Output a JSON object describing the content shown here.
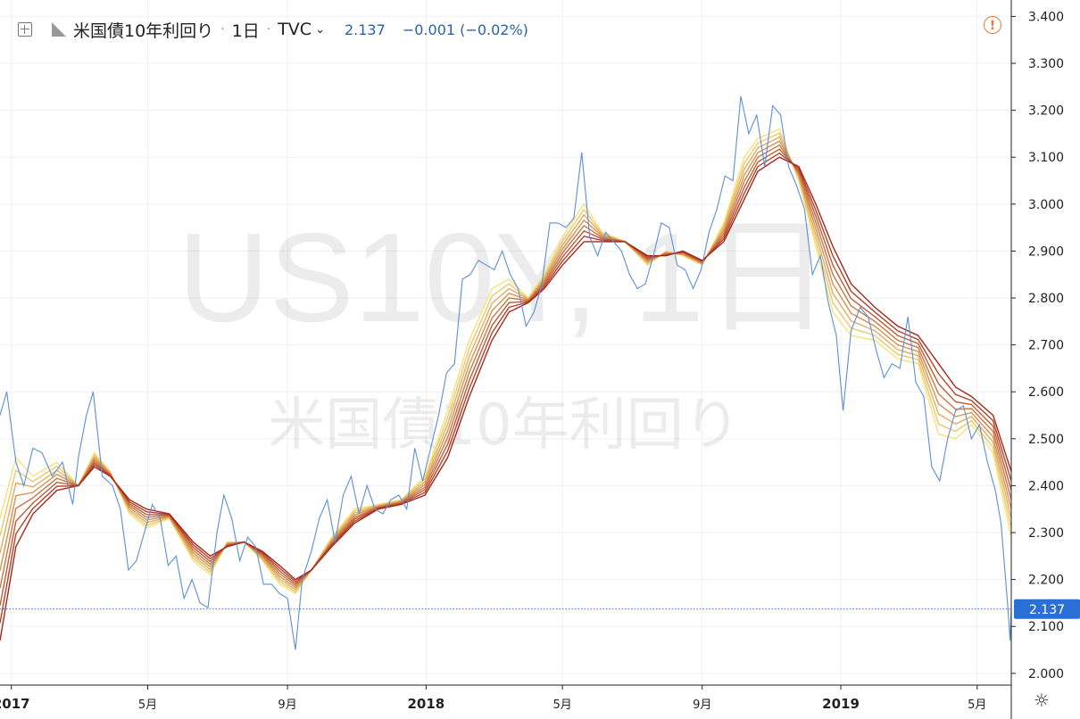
{
  "header": {
    "symbol_title": "米国債10年利回り",
    "separator": "·",
    "interval": "1日",
    "exchange": "TVC",
    "last_value": "2.137",
    "change": "−0.001 (−0.02%)"
  },
  "watermark": {
    "line1": "US10Y, 1日",
    "line2": "米国債10年利回り"
  },
  "icons": {
    "add": "plus-square-icon",
    "flag": "flag-icon",
    "dropdown": "chevron-down-icon",
    "alert": "alert-circle-icon",
    "settings": "gear-icon"
  },
  "colors": {
    "price_line": "#5b8fd9",
    "ribbon_fast": "#f7e27a",
    "ribbon_slow": "#a8271b",
    "price_tag": "#2a6fd6",
    "alert": "#ef7a30"
  },
  "chart_data": {
    "type": "line",
    "x_axis": {
      "ticks": [
        {
          "label": "2017",
          "date": "2017-01-01",
          "major": true
        },
        {
          "label": "5月",
          "date": "2017-05-01",
          "major": false
        },
        {
          "label": "9月",
          "date": "2017-09-01",
          "major": false
        },
        {
          "label": "2018",
          "date": "2018-01-01",
          "major": true
        },
        {
          "label": "5月",
          "date": "2018-05-01",
          "major": false
        },
        {
          "label": "9月",
          "date": "2018-09-01",
          "major": false
        },
        {
          "label": "2019",
          "date": "2019-01-01",
          "major": true
        },
        {
          "label": "5月",
          "date": "2019-05-01",
          "major": false
        }
      ],
      "range": [
        "2016-12-22",
        "2019-05-31"
      ]
    },
    "y_axis": {
      "ticks": [
        "2.000",
        "2.100",
        "2.200",
        "2.300",
        "2.400",
        "2.500",
        "2.600",
        "2.700",
        "2.800",
        "2.900",
        "3.000",
        "3.100",
        "3.200",
        "3.300",
        "3.400"
      ],
      "range": [
        1.975,
        3.435
      ],
      "side": "right"
    },
    "grid": true,
    "current_value": {
      "value": 2.137,
      "label": "2.137"
    },
    "series": [
      {
        "role": "price",
        "color": "#5b8fd9",
        "points": [
          [
            "2016-12-22",
            2.55
          ],
          [
            "2016-12-28",
            2.6
          ],
          [
            "2017-01-05",
            2.45
          ],
          [
            "2017-01-12",
            2.4
          ],
          [
            "2017-01-20",
            2.48
          ],
          [
            "2017-01-28",
            2.47
          ],
          [
            "2017-02-06",
            2.42
          ],
          [
            "2017-02-15",
            2.45
          ],
          [
            "2017-02-24",
            2.36
          ],
          [
            "2017-03-01",
            2.46
          ],
          [
            "2017-03-08",
            2.55
          ],
          [
            "2017-03-14",
            2.6
          ],
          [
            "2017-03-22",
            2.42
          ],
          [
            "2017-03-31",
            2.4
          ],
          [
            "2017-04-07",
            2.35
          ],
          [
            "2017-04-14",
            2.22
          ],
          [
            "2017-04-21",
            2.24
          ],
          [
            "2017-04-28",
            2.3
          ],
          [
            "2017-05-05",
            2.36
          ],
          [
            "2017-05-12",
            2.33
          ],
          [
            "2017-05-19",
            2.23
          ],
          [
            "2017-05-26",
            2.25
          ],
          [
            "2017-06-02",
            2.16
          ],
          [
            "2017-06-09",
            2.2
          ],
          [
            "2017-06-16",
            2.15
          ],
          [
            "2017-06-23",
            2.14
          ],
          [
            "2017-07-01",
            2.3
          ],
          [
            "2017-07-07",
            2.38
          ],
          [
            "2017-07-14",
            2.33
          ],
          [
            "2017-07-21",
            2.24
          ],
          [
            "2017-07-28",
            2.29
          ],
          [
            "2017-08-04",
            2.27
          ],
          [
            "2017-08-11",
            2.19
          ],
          [
            "2017-08-18",
            2.19
          ],
          [
            "2017-08-25",
            2.17
          ],
          [
            "2017-09-01",
            2.16
          ],
          [
            "2017-09-08",
            2.05
          ],
          [
            "2017-09-14",
            2.2
          ],
          [
            "2017-09-22",
            2.26
          ],
          [
            "2017-09-29",
            2.33
          ],
          [
            "2017-10-06",
            2.37
          ],
          [
            "2017-10-13",
            2.28
          ],
          [
            "2017-10-20",
            2.38
          ],
          [
            "2017-10-27",
            2.42
          ],
          [
            "2017-11-03",
            2.34
          ],
          [
            "2017-11-10",
            2.4
          ],
          [
            "2017-11-17",
            2.35
          ],
          [
            "2017-11-24",
            2.34
          ],
          [
            "2017-12-01",
            2.37
          ],
          [
            "2017-12-08",
            2.38
          ],
          [
            "2017-12-15",
            2.35
          ],
          [
            "2017-12-22",
            2.48
          ],
          [
            "2017-12-29",
            2.41
          ],
          [
            "2018-01-05",
            2.48
          ],
          [
            "2018-01-12",
            2.55
          ],
          [
            "2018-01-19",
            2.64
          ],
          [
            "2018-01-26",
            2.66
          ],
          [
            "2018-02-02",
            2.84
          ],
          [
            "2018-02-09",
            2.85
          ],
          [
            "2018-02-16",
            2.88
          ],
          [
            "2018-02-23",
            2.87
          ],
          [
            "2018-03-02",
            2.86
          ],
          [
            "2018-03-09",
            2.9
          ],
          [
            "2018-03-16",
            2.85
          ],
          [
            "2018-03-23",
            2.82
          ],
          [
            "2018-03-30",
            2.74
          ],
          [
            "2018-04-06",
            2.77
          ],
          [
            "2018-04-13",
            2.83
          ],
          [
            "2018-04-20",
            2.96
          ],
          [
            "2018-04-27",
            2.96
          ],
          [
            "2018-05-04",
            2.95
          ],
          [
            "2018-05-11",
            2.97
          ],
          [
            "2018-05-18",
            3.11
          ],
          [
            "2018-05-25",
            2.93
          ],
          [
            "2018-06-01",
            2.89
          ],
          [
            "2018-06-08",
            2.94
          ],
          [
            "2018-06-15",
            2.92
          ],
          [
            "2018-06-22",
            2.9
          ],
          [
            "2018-06-29",
            2.85
          ],
          [
            "2018-07-06",
            2.82
          ],
          [
            "2018-07-13",
            2.83
          ],
          [
            "2018-07-20",
            2.89
          ],
          [
            "2018-07-27",
            2.96
          ],
          [
            "2018-08-03",
            2.95
          ],
          [
            "2018-08-10",
            2.87
          ],
          [
            "2018-08-17",
            2.86
          ],
          [
            "2018-08-24",
            2.82
          ],
          [
            "2018-08-31",
            2.86
          ],
          [
            "2018-09-07",
            2.94
          ],
          [
            "2018-09-14",
            2.99
          ],
          [
            "2018-09-21",
            3.06
          ],
          [
            "2018-09-28",
            3.05
          ],
          [
            "2018-10-05",
            3.23
          ],
          [
            "2018-10-12",
            3.15
          ],
          [
            "2018-10-19",
            3.19
          ],
          [
            "2018-10-26",
            3.08
          ],
          [
            "2018-11-02",
            3.21
          ],
          [
            "2018-11-09",
            3.19
          ],
          [
            "2018-11-16",
            3.08
          ],
          [
            "2018-11-23",
            3.04
          ],
          [
            "2018-11-30",
            2.99
          ],
          [
            "2018-12-07",
            2.85
          ],
          [
            "2018-12-14",
            2.89
          ],
          [
            "2018-12-21",
            2.79
          ],
          [
            "2018-12-28",
            2.72
          ],
          [
            "2019-01-03",
            2.56
          ],
          [
            "2019-01-10",
            2.73
          ],
          [
            "2019-01-18",
            2.78
          ],
          [
            "2019-01-25",
            2.76
          ],
          [
            "2019-02-01",
            2.69
          ],
          [
            "2019-02-08",
            2.63
          ],
          [
            "2019-02-15",
            2.66
          ],
          [
            "2019-02-22",
            2.65
          ],
          [
            "2019-03-01",
            2.76
          ],
          [
            "2019-03-08",
            2.62
          ],
          [
            "2019-03-15",
            2.59
          ],
          [
            "2019-03-22",
            2.44
          ],
          [
            "2019-03-29",
            2.41
          ],
          [
            "2019-04-05",
            2.5
          ],
          [
            "2019-04-12",
            2.56
          ],
          [
            "2019-04-19",
            2.57
          ],
          [
            "2019-04-26",
            2.5
          ],
          [
            "2019-05-03",
            2.53
          ],
          [
            "2019-05-10",
            2.45
          ],
          [
            "2019-05-17",
            2.39
          ],
          [
            "2019-05-22",
            2.32
          ],
          [
            "2019-05-24",
            2.26
          ],
          [
            "2019-05-28",
            2.14
          ],
          [
            "2019-05-30",
            2.07
          ],
          [
            "2019-05-31",
            2.137
          ]
        ]
      },
      {
        "role": "ribbon_fast",
        "points": [
          [
            "2016-12-22",
            2.33
          ],
          [
            "2017-01-05",
            2.46
          ],
          [
            "2017-01-20",
            2.42
          ],
          [
            "2017-02-10",
            2.45
          ],
          [
            "2017-03-01",
            2.4
          ],
          [
            "2017-03-15",
            2.47
          ],
          [
            "2017-03-29",
            2.43
          ],
          [
            "2017-04-15",
            2.34
          ],
          [
            "2017-04-30",
            2.31
          ],
          [
            "2017-05-20",
            2.33
          ],
          [
            "2017-06-10",
            2.24
          ],
          [
            "2017-06-25",
            2.21
          ],
          [
            "2017-07-10",
            2.28
          ],
          [
            "2017-07-25",
            2.28
          ],
          [
            "2017-08-10",
            2.24
          ],
          [
            "2017-08-25",
            2.19
          ],
          [
            "2017-09-08",
            2.17
          ],
          [
            "2017-09-22",
            2.22
          ],
          [
            "2017-10-10",
            2.29
          ],
          [
            "2017-10-30",
            2.35
          ],
          [
            "2017-11-20",
            2.36
          ],
          [
            "2017-12-10",
            2.37
          ],
          [
            "2017-12-31",
            2.42
          ],
          [
            "2018-01-20",
            2.56
          ],
          [
            "2018-02-08",
            2.71
          ],
          [
            "2018-02-28",
            2.82
          ],
          [
            "2018-03-15",
            2.84
          ],
          [
            "2018-04-01",
            2.8
          ],
          [
            "2018-04-15",
            2.85
          ],
          [
            "2018-05-01",
            2.93
          ],
          [
            "2018-05-20",
            3.0
          ],
          [
            "2018-06-05",
            2.94
          ],
          [
            "2018-06-25",
            2.92
          ],
          [
            "2018-07-15",
            2.87
          ],
          [
            "2018-07-31",
            2.9
          ],
          [
            "2018-08-15",
            2.89
          ],
          [
            "2018-09-01",
            2.87
          ],
          [
            "2018-09-20",
            2.96
          ],
          [
            "2018-10-08",
            3.1
          ],
          [
            "2018-10-20",
            3.14
          ],
          [
            "2018-11-08",
            3.16
          ],
          [
            "2018-11-25",
            3.05
          ],
          [
            "2018-12-10",
            2.91
          ],
          [
            "2018-12-25",
            2.77
          ],
          [
            "2019-01-10",
            2.72
          ],
          [
            "2019-01-31",
            2.71
          ],
          [
            "2019-02-20",
            2.67
          ],
          [
            "2019-03-10",
            2.66
          ],
          [
            "2019-03-28",
            2.51
          ],
          [
            "2019-04-12",
            2.5
          ],
          [
            "2019-04-26",
            2.53
          ],
          [
            "2019-05-15",
            2.47
          ],
          [
            "2019-05-31",
            2.29
          ]
        ]
      },
      {
        "role": "ribbon_slow",
        "points": [
          [
            "2016-12-22",
            2.07
          ],
          [
            "2017-01-05",
            2.27
          ],
          [
            "2017-01-20",
            2.34
          ],
          [
            "2017-02-10",
            2.39
          ],
          [
            "2017-03-01",
            2.4
          ],
          [
            "2017-03-15",
            2.44
          ],
          [
            "2017-03-29",
            2.42
          ],
          [
            "2017-04-15",
            2.37
          ],
          [
            "2017-04-30",
            2.35
          ],
          [
            "2017-05-20",
            2.34
          ],
          [
            "2017-06-10",
            2.28
          ],
          [
            "2017-06-25",
            2.25
          ],
          [
            "2017-07-10",
            2.27
          ],
          [
            "2017-07-25",
            2.28
          ],
          [
            "2017-08-10",
            2.26
          ],
          [
            "2017-08-25",
            2.23
          ],
          [
            "2017-09-08",
            2.2
          ],
          [
            "2017-09-22",
            2.22
          ],
          [
            "2017-10-10",
            2.27
          ],
          [
            "2017-10-30",
            2.32
          ],
          [
            "2017-11-20",
            2.35
          ],
          [
            "2017-12-10",
            2.36
          ],
          [
            "2017-12-31",
            2.38
          ],
          [
            "2018-01-20",
            2.46
          ],
          [
            "2018-02-08",
            2.59
          ],
          [
            "2018-02-28",
            2.71
          ],
          [
            "2018-03-15",
            2.77
          ],
          [
            "2018-04-01",
            2.79
          ],
          [
            "2018-04-15",
            2.82
          ],
          [
            "2018-05-01",
            2.87
          ],
          [
            "2018-05-20",
            2.92
          ],
          [
            "2018-06-05",
            2.92
          ],
          [
            "2018-06-25",
            2.92
          ],
          [
            "2018-07-15",
            2.89
          ],
          [
            "2018-07-31",
            2.89
          ],
          [
            "2018-08-15",
            2.9
          ],
          [
            "2018-09-01",
            2.88
          ],
          [
            "2018-09-20",
            2.92
          ],
          [
            "2018-10-08",
            3.01
          ],
          [
            "2018-10-20",
            3.07
          ],
          [
            "2018-11-08",
            3.1
          ],
          [
            "2018-11-25",
            3.08
          ],
          [
            "2018-12-10",
            3.0
          ],
          [
            "2018-12-25",
            2.91
          ],
          [
            "2019-01-10",
            2.83
          ],
          [
            "2019-01-31",
            2.78
          ],
          [
            "2019-02-20",
            2.74
          ],
          [
            "2019-03-10",
            2.72
          ],
          [
            "2019-03-28",
            2.66
          ],
          [
            "2019-04-12",
            2.61
          ],
          [
            "2019-04-26",
            2.59
          ],
          [
            "2019-05-15",
            2.55
          ],
          [
            "2019-05-31",
            2.43
          ]
        ]
      }
    ],
    "ribbon_count": 8
  }
}
